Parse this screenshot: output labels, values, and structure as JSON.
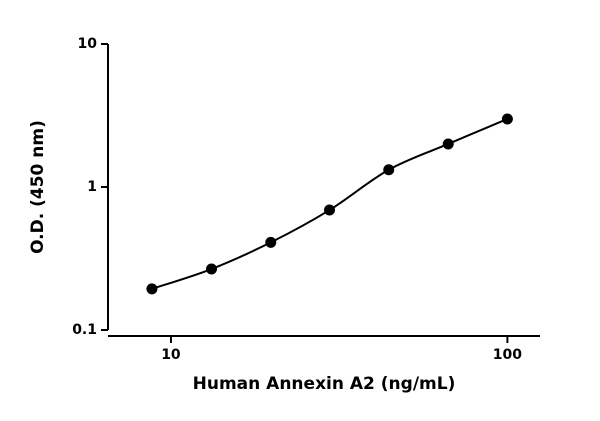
{
  "chart_data": {
    "type": "scatter",
    "xlabel": "Human Annexin A2 (ng/mL)",
    "ylabel": "O.D. (450 nm)",
    "xscale": "log",
    "yscale": "log",
    "xlim": [
      6.5,
      125
    ],
    "ylim": [
      0.1,
      10
    ],
    "xticks": [
      10,
      100
    ],
    "yticks": [
      0.1,
      1,
      10
    ],
    "series": [
      {
        "color": "#000000",
        "x": [
          8.78,
          13.2,
          19.8,
          29.6,
          44.4,
          66.7,
          100
        ],
        "values": [
          0.194,
          0.267,
          0.41,
          0.69,
          1.32,
          2.0,
          2.99
        ]
      }
    ],
    "fit_curve": true
  }
}
